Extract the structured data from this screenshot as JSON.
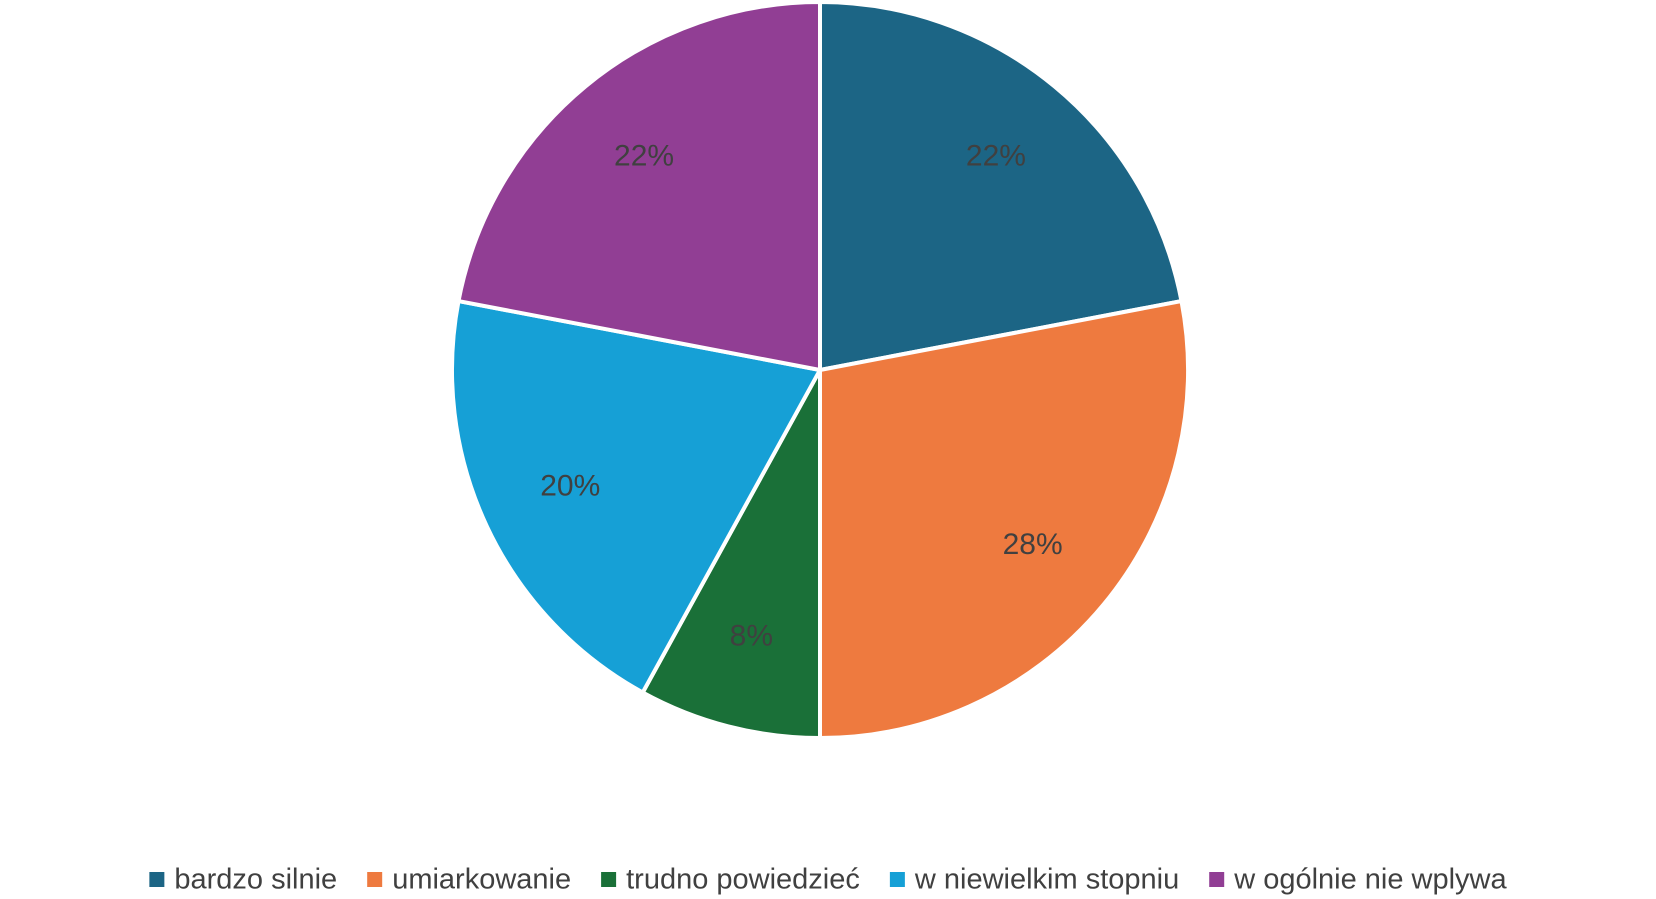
{
  "chart_data": {
    "type": "pie",
    "categories": [
      "bardzo silnie",
      "umiarkowanie",
      "trudno powiedzieć",
      "w niewielkim stopniu",
      "w ogólnie nie wplywa"
    ],
    "values": [
      22,
      28,
      8,
      20,
      22
    ],
    "value_labels": [
      "22%",
      "28%",
      "8%",
      "20%",
      "22%"
    ],
    "colors": [
      "#1c6585",
      "#ee7a3f",
      "#1a7038",
      "#16a0d6",
      "#913e94"
    ],
    "legend": "bottom"
  }
}
